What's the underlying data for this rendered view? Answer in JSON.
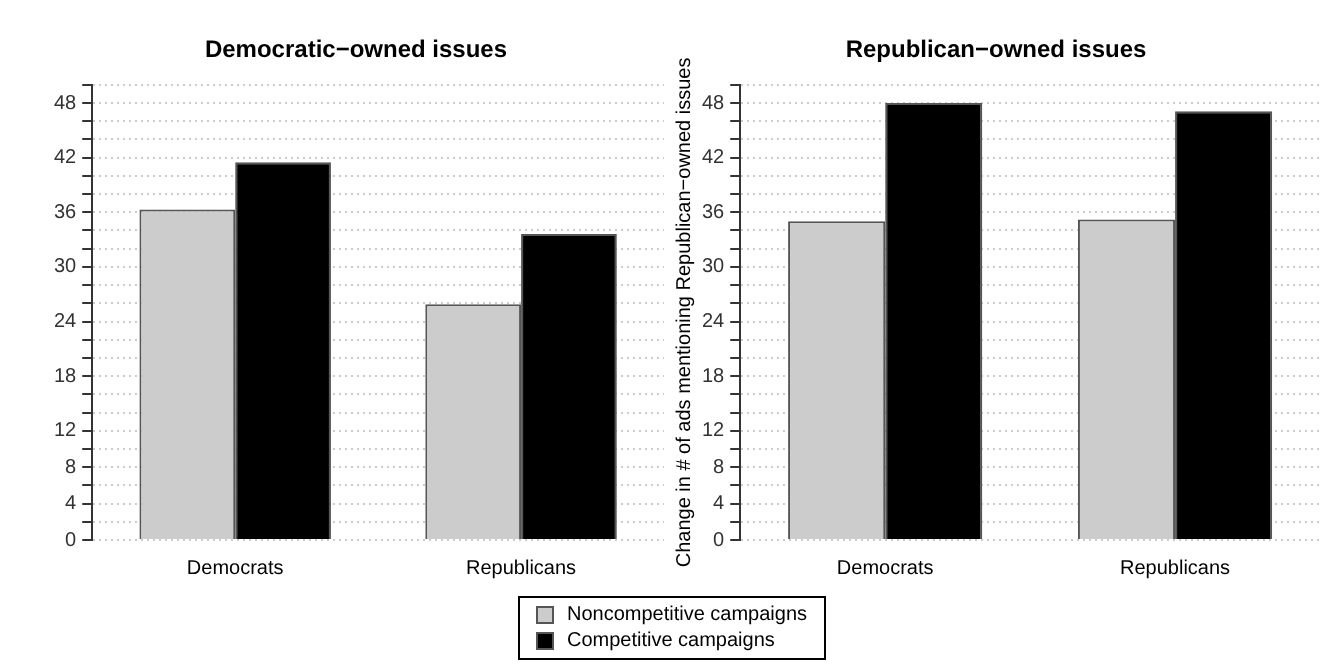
{
  "chart_data": [
    {
      "type": "bar",
      "title": "Democratic−owned issues",
      "categories": [
        "Democrats",
        "Republicans"
      ],
      "series": [
        {
          "name": "Noncompetitive campaigns",
          "color": "#cccccc",
          "values": [
            36.3,
            25.9
          ]
        },
        {
          "name": "Competitive campaigns",
          "color": "#000000",
          "values": [
            41.5,
            33.6
          ]
        }
      ],
      "ylim": [
        0,
        50
      ],
      "yticks": [
        0,
        {
          "value": 2,
          "label": null
        },
        4,
        {
          "value": 6,
          "label": null
        },
        8,
        {
          "value": 10,
          "label": null
        },
        12,
        {
          "value": 14,
          "label": null
        },
        {
          "value": 16,
          "label": null
        },
        18,
        {
          "value": 20,
          "label": null
        },
        {
          "value": 22,
          "label": null
        },
        24,
        {
          "value": 26,
          "label": null
        },
        {
          "value": 28,
          "label": null
        },
        30,
        {
          "value": 32,
          "label": null
        },
        {
          "value": 34,
          "label": null
        },
        36,
        {
          "value": 38,
          "label": null
        },
        {
          "value": 40,
          "label": null
        },
        42,
        {
          "value": 44,
          "label": null
        },
        {
          "value": 46,
          "label": null
        },
        48,
        {
          "value": 50,
          "label": null
        }
      ],
      "grid": "y",
      "legend": "bottom"
    },
    {
      "type": "bar",
      "title": "Republican−owned issues",
      "ylabel": "Change in # of ads mentioning Republican−owned issues",
      "categories": [
        "Democrats",
        "Republicans"
      ],
      "series": [
        {
          "color": "#cccccc",
          "values": [
            35.0,
            35.2
          ]
        },
        {
          "color": "#000000",
          "values": [
            48.0,
            47.1
          ]
        }
      ],
      "ylim": [
        0,
        50
      ],
      "yticks": [
        0,
        {
          "value": 2,
          "label": null
        },
        4,
        {
          "value": 6,
          "label": null
        },
        8,
        {
          "value": 10,
          "label": null
        },
        12,
        {
          "value": 14,
          "label": null
        },
        {
          "value": 16,
          "label": null
        },
        18,
        {
          "value": 20,
          "label": null
        },
        {
          "value": 22,
          "label": null
        },
        24,
        {
          "value": 26,
          "label": null
        },
        {
          "value": 28,
          "label": null
        },
        30,
        {
          "value": 32,
          "label": null
        },
        {
          "value": 34,
          "label": null
        },
        36,
        {
          "value": 38,
          "label": null
        },
        {
          "value": 40,
          "label": null
        },
        42,
        {
          "value": 44,
          "label": null
        },
        {
          "value": 46,
          "label": null
        },
        48,
        {
          "value": 50,
          "label": null
        }
      ],
      "grid": "y"
    }
  ]
}
